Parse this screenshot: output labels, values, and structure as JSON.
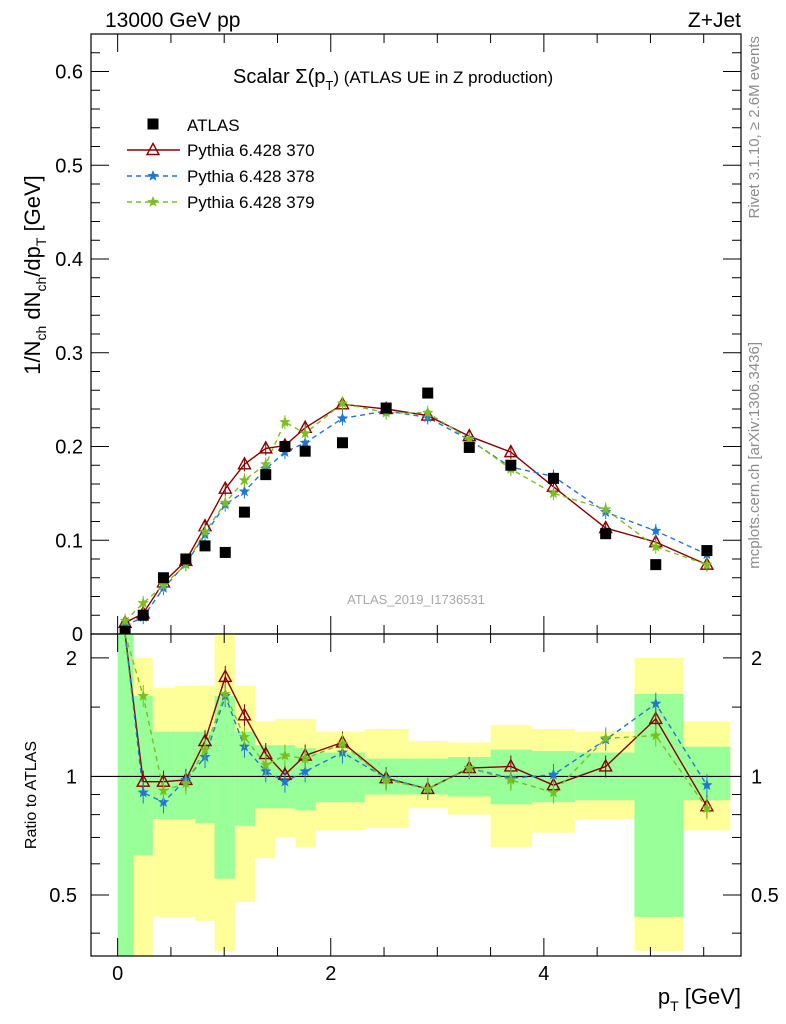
{
  "header": {
    "left": "13000 GeV pp",
    "right": "Z+Jet"
  },
  "side_labels": {
    "rivet": "Rivet 3.1.10, ≥ 2.6M events",
    "mcplots": "mcplots.cern.ch [arXiv:1306.3436]"
  },
  "watermark": "ATLAS_2019_I1736531",
  "chart_data": {
    "type": "scatter",
    "title": "Scalar Σ(p",
    "title_sub": "T",
    "title_tail": ") (ATLAS UE in Z production)",
    "ylabel": {
      "p1": "1/N",
      "s1": "ch",
      "p2": " dN",
      "s2": "ch",
      "p3": "/dp",
      "s3": "T",
      "p4": " [GeV]"
    },
    "xlabel": {
      "p1": "p",
      "s1": "T",
      "p2": " [GeV]"
    },
    "ratio_ylabel": "Ratio to ATLAS",
    "xlim": [
      -0.25,
      5.85
    ],
    "ylim": [
      0,
      0.64
    ],
    "ratio_ylim": [
      0.35,
      2.3
    ],
    "ratio_scale": "log",
    "x_ticks": [
      0,
      2,
      4
    ],
    "y_ticks": [
      0,
      0.1,
      0.2,
      0.3,
      0.4,
      0.5,
      0.6
    ],
    "y_tick_labels": [
      "0",
      "0.1",
      "0.2",
      "0.3",
      "0.4",
      "0.5",
      "0.6"
    ],
    "ratio_ticks": [
      0.5,
      1,
      2
    ],
    "ratio_tick_labels": [
      "0.5",
      "1",
      "2"
    ],
    "legend_position": "top-left",
    "x": [
      0.07,
      0.24,
      0.43,
      0.64,
      0.82,
      1.01,
      1.19,
      1.39,
      1.57,
      1.76,
      2.11,
      2.52,
      2.91,
      3.3,
      3.69,
      4.09,
      4.58,
      5.05,
      5.53
    ],
    "data": {
      "name": "ATLAS",
      "color": "#000000",
      "y": [
        0.003,
        0.02,
        0.06,
        0.08,
        0.094,
        0.087,
        0.13,
        0.17,
        0.2,
        0.195,
        0.204,
        0.241,
        0.257,
        0.199,
        0.18,
        0.166,
        0.107,
        0.074,
        0.089
      ],
      "band_edges": [
        0.0,
        0.15,
        0.33,
        0.54,
        0.73,
        0.91,
        1.1,
        1.29,
        1.48,
        1.67,
        1.86,
        2.32,
        2.73,
        3.1,
        3.5,
        3.89,
        4.29,
        4.85,
        5.31,
        5.75
      ],
      "stat_band": [
        [
          0.35,
          2.3
        ],
        [
          0.63,
          1.6
        ],
        [
          0.78,
          1.3
        ],
        [
          0.78,
          1.3
        ],
        [
          0.76,
          1.3
        ],
        [
          0.55,
          1.6
        ],
        [
          0.75,
          1.3
        ],
        [
          0.83,
          1.2
        ],
        [
          0.83,
          1.2
        ],
        [
          0.82,
          1.18
        ],
        [
          0.86,
          1.15
        ],
        [
          0.9,
          1.11
        ],
        [
          0.9,
          1.11
        ],
        [
          0.89,
          1.12
        ],
        [
          0.85,
          1.17
        ],
        [
          0.86,
          1.16
        ],
        [
          0.87,
          1.15
        ],
        [
          0.44,
          1.62
        ],
        [
          0.87,
          1.19
        ]
      ],
      "total_band": [
        [
          0.35,
          2.3
        ],
        [
          0.35,
          2.0
        ],
        [
          0.44,
          1.68
        ],
        [
          0.44,
          1.7
        ],
        [
          0.43,
          1.7
        ],
        [
          0.36,
          2.3
        ],
        [
          0.48,
          1.7
        ],
        [
          0.62,
          1.38
        ],
        [
          0.7,
          1.4
        ],
        [
          0.66,
          1.4
        ],
        [
          0.73,
          1.3
        ],
        [
          0.74,
          1.32
        ],
        [
          0.83,
          1.23
        ],
        [
          0.8,
          1.22
        ],
        [
          0.66,
          1.35
        ],
        [
          0.72,
          1.32
        ],
        [
          0.78,
          1.3
        ],
        [
          0.36,
          2.0
        ],
        [
          0.73,
          1.38
        ]
      ]
    },
    "series": [
      {
        "name": "Pythia 6.428 370",
        "color": "#8b0000",
        "marker": "triangle",
        "dash": "",
        "y": [
          0.012,
          0.022,
          0.055,
          0.078,
          0.115,
          0.155,
          0.181,
          0.198,
          0.201,
          0.22,
          0.245,
          0.24,
          0.233,
          0.211,
          0.194,
          0.157,
          0.113,
          0.098,
          0.074
        ],
        "ratio": [
          5.0,
          0.97,
          0.97,
          0.98,
          1.23,
          1.79,
          1.43,
          1.14,
          1.01,
          1.13,
          1.22,
          0.99,
          0.93,
          1.05,
          1.06,
          0.95,
          1.06,
          1.4,
          0.84
        ]
      },
      {
        "name": "Pythia 6.428 378",
        "color": "#1f77d4",
        "marker": "star",
        "dash": "5,4",
        "y": [
          0.009,
          0.018,
          0.049,
          0.075,
          0.106,
          0.138,
          0.152,
          0.176,
          0.194,
          0.204,
          0.23,
          0.238,
          0.231,
          0.207,
          0.178,
          0.168,
          0.13,
          0.11,
          0.085
        ],
        "ratio": [
          4.0,
          0.91,
          0.86,
          0.98,
          1.12,
          1.6,
          1.19,
          1.03,
          0.97,
          1.03,
          1.15,
          0.99,
          0.93,
          1.05,
          0.99,
          1.01,
          1.24,
          1.53,
          0.95
        ]
      },
      {
        "name": "Pythia 6.428 379",
        "color": "#7bbf1e",
        "marker": "star",
        "dash": "5,4",
        "y": [
          0.014,
          0.033,
          0.052,
          0.074,
          0.109,
          0.14,
          0.164,
          0.181,
          0.226,
          0.214,
          0.246,
          0.236,
          0.236,
          0.208,
          0.176,
          0.15,
          0.133,
          0.093,
          0.074
        ],
        "ratio": [
          4.5,
          1.6,
          0.92,
          0.96,
          1.17,
          1.62,
          1.26,
          1.07,
          1.13,
          1.11,
          1.21,
          0.98,
          0.93,
          1.05,
          0.98,
          0.91,
          1.25,
          1.27,
          0.83
        ]
      }
    ]
  }
}
